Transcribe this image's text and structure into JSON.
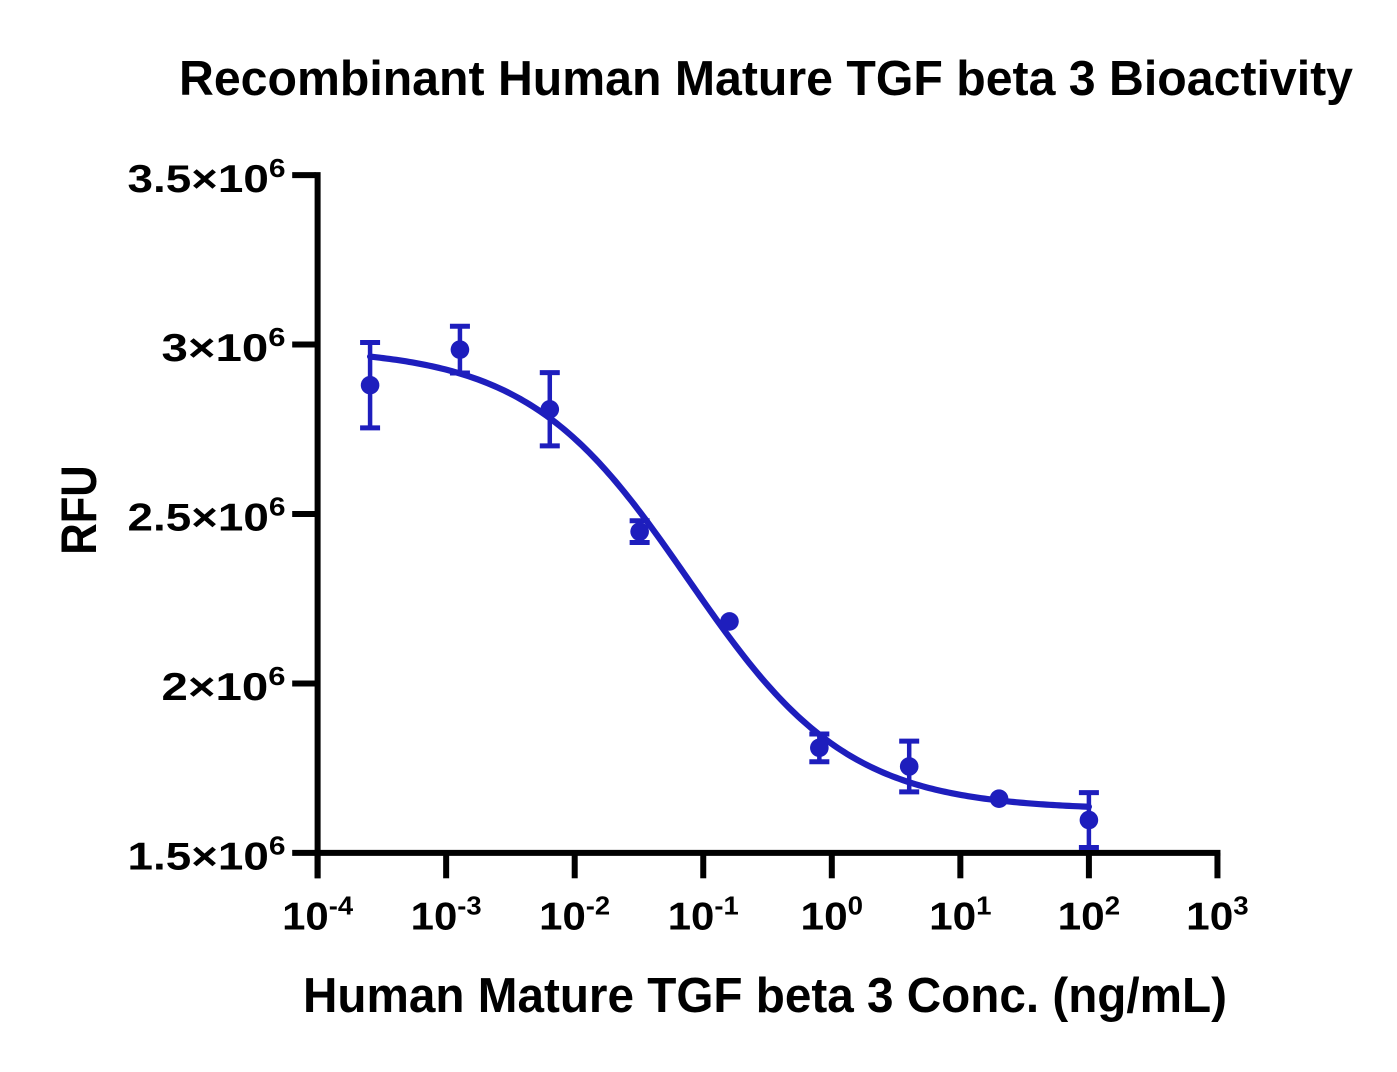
{
  "page": {
    "background": "#ffffff",
    "text_color": "#000000"
  },
  "chart_data": {
    "type": "scatter",
    "title": "Recombinant Human Mature TGF beta 3 Bioactivity",
    "xlabel": "Human Mature TGF beta 3 Conc. (ng/mL)",
    "ylabel": "RFU",
    "x_scale": "log10",
    "xlim_log10": [
      -4,
      3
    ],
    "ylim": [
      1500000,
      3500000
    ],
    "grid": false,
    "legend": false,
    "x_tick_base": "10",
    "x_tick_exponents": [
      -4,
      -3,
      -2,
      -1,
      0,
      1,
      2,
      3
    ],
    "y_ticks": [
      {
        "value": 1500000,
        "mantissa": "1.5",
        "times": "×10",
        "exp": "6"
      },
      {
        "value": 2000000,
        "mantissa": "2",
        "times": "×10",
        "exp": "6"
      },
      {
        "value": 2500000,
        "mantissa": "2.5",
        "times": "×10",
        "exp": "6"
      },
      {
        "value": 3000000,
        "mantissa": "3",
        "times": "×10",
        "exp": "6"
      },
      {
        "value": 3500000,
        "mantissa": "3.5",
        "times": "×10",
        "exp": "6"
      }
    ],
    "series": [
      {
        "name": "Human Mature TGF beta 3",
        "color": "#1e1ebd",
        "marker": "circle",
        "points": [
          {
            "x": 0.000256,
            "y": 2880000,
            "err": 126000
          },
          {
            "x": 0.00128,
            "y": 2985000,
            "err": 69000
          },
          {
            "x": 0.0064,
            "y": 2809000,
            "err": 108000
          },
          {
            "x": 0.032,
            "y": 2448000,
            "err": 32000
          },
          {
            "x": 0.16,
            "y": 2183000,
            "err": null
          },
          {
            "x": 0.8,
            "y": 1810000,
            "err": 41000
          },
          {
            "x": 4,
            "y": 1755000,
            "err": 75000
          },
          {
            "x": 20,
            "y": 1660000,
            "err": null
          },
          {
            "x": 100,
            "y": 1597000,
            "err": 81000
          }
        ],
        "fit": {
          "model": "4PL",
          "top": 2990000,
          "bottom": 1627000,
          "ec50": 0.0759,
          "hill": 0.695
        }
      }
    ],
    "axis_color": "#000000"
  }
}
